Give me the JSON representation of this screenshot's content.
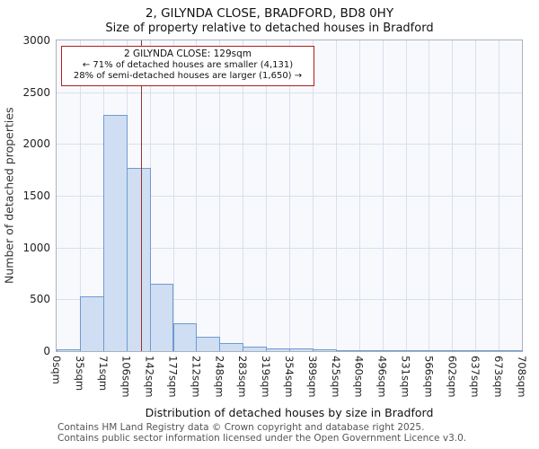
{
  "title": "2, GILYNDA CLOSE, BRADFORD, BD8 0HY",
  "subtitle": "Size of property relative to detached houses in Bradford",
  "annotation": {
    "line1": "2 GILYNDA CLOSE: 129sqm",
    "line2": "← 71% of detached houses are smaller (4,131)",
    "line3": "28% of semi-detached houses are larger (1,650) →"
  },
  "footer": {
    "line1": "Contains HM Land Registry data © Crown copyright and database right 2025.",
    "line2": "Contains public sector information licensed under the Open Government Licence v3.0."
  },
  "chart_data": {
    "type": "bar",
    "title": "2, GILYNDA CLOSE, BRADFORD, BD8 0HY",
    "subtitle": "Size of property relative to detached houses in Bradford",
    "xlabel": "Distribution of detached houses by size in Bradford",
    "ylabel": "Number of detached properties",
    "ylim": [
      0,
      3000
    ],
    "yticks": [
      0,
      500,
      1000,
      1500,
      2000,
      2500,
      3000
    ],
    "categories": [
      "0sqm",
      "35sqm",
      "71sqm",
      "106sqm",
      "142sqm",
      "177sqm",
      "212sqm",
      "248sqm",
      "283sqm",
      "319sqm",
      "354sqm",
      "389sqm",
      "425sqm",
      "460sqm",
      "496sqm",
      "531sqm",
      "566sqm",
      "602sqm",
      "637sqm",
      "673sqm",
      "708sqm"
    ],
    "values": [
      20,
      530,
      2280,
      1770,
      650,
      270,
      140,
      80,
      45,
      30,
      25,
      20,
      12,
      10,
      5,
      3,
      2,
      2,
      1,
      1
    ],
    "marker": {
      "label": "129sqm",
      "value": 129,
      "xmax": 708
    },
    "grid": true,
    "legend": "none",
    "colors": {
      "bar_fill": "#cfdef2",
      "bar_border": "#6f9bd1",
      "marker_line": "#99332e",
      "annotation_border": "#b01f1f"
    }
  }
}
